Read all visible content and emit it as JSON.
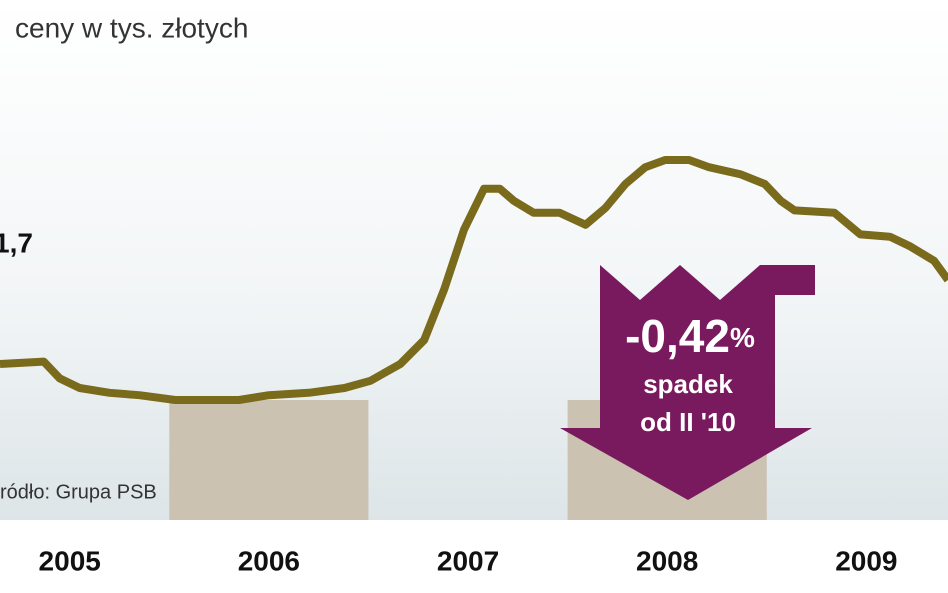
{
  "chart_data": {
    "type": "line",
    "title": "ceny w tys. złotych",
    "annotation": "1,7",
    "source": "ródło: Grupa PSB",
    "callout": {
      "value": "-0,42",
      "unit": "%",
      "line1": "spadek",
      "line2": "od II '10"
    },
    "x_labels": [
      "2005",
      "2006",
      "2007",
      "2008",
      "2009"
    ],
    "bands": [
      [
        2006,
        2007
      ],
      [
        2008,
        2009
      ]
    ],
    "x": [
      2005.15,
      2005.37,
      2005.45,
      2005.55,
      2005.7,
      2005.85,
      2006.03,
      2006.2,
      2006.35,
      2006.5,
      2006.7,
      2006.88,
      2007.01,
      2007.16,
      2007.28,
      2007.38,
      2007.48,
      2007.58,
      2007.66,
      2007.73,
      2007.83,
      2007.96,
      2008.09,
      2008.19,
      2008.29,
      2008.39,
      2008.49,
      2008.61,
      2008.71,
      2008.87,
      2008.99,
      2009.07,
      2009.14,
      2009.34,
      2009.47,
      2009.62,
      2009.72,
      2009.84,
      2009.91
    ],
    "values": [
      1.15,
      1.16,
      1.09,
      1.05,
      1.03,
      1.02,
      1.0,
      1.0,
      1.0,
      1.02,
      1.03,
      1.05,
      1.08,
      1.15,
      1.25,
      1.46,
      1.71,
      1.88,
      1.88,
      1.83,
      1.78,
      1.78,
      1.73,
      1.8,
      1.9,
      1.97,
      2.0,
      2.0,
      1.97,
      1.94,
      1.9,
      1.83,
      1.79,
      1.78,
      1.69,
      1.68,
      1.64,
      1.58,
      1.5
    ],
    "color": "#7a6a1c",
    "xlim": [
      2005.15,
      2009.91
    ],
    "ylim": [
      0.5,
      2.5
    ]
  }
}
